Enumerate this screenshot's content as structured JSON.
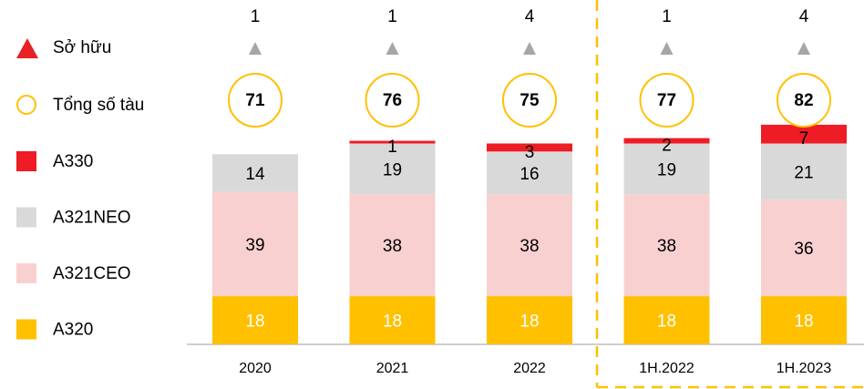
{
  "chart_data": {
    "type": "stacked_bar",
    "categories": [
      "2020",
      "2021",
      "2022",
      "1H.2022",
      "1H.2023"
    ],
    "series": [
      {
        "name": "A320",
        "color": "#ffc000",
        "label_color": "#ffffff",
        "values": [
          18,
          18,
          18,
          18,
          18
        ]
      },
      {
        "name": "A321CEO",
        "color": "#f8d0d0",
        "label_color": "#000000",
        "values": [
          39,
          38,
          38,
          38,
          36
        ]
      },
      {
        "name": "A321NEO",
        "color": "#d9d9d9",
        "label_color": "#000000",
        "values": [
          14,
          19,
          16,
          19,
          21
        ]
      },
      {
        "name": "A330",
        "color": "#ee1c25",
        "label_color": "#000000",
        "values": [
          null,
          1,
          3,
          2,
          7
        ]
      }
    ],
    "totals": {
      "name": "Tổng số tàu",
      "color": "#ffc000",
      "values": [
        71,
        76,
        75,
        77,
        82
      ]
    },
    "owned": {
      "name": "Sở hữu",
      "color": "#e82127",
      "marker_color": "#a6a6a6",
      "values": [
        1,
        1,
        4,
        1,
        4
      ]
    }
  }
}
